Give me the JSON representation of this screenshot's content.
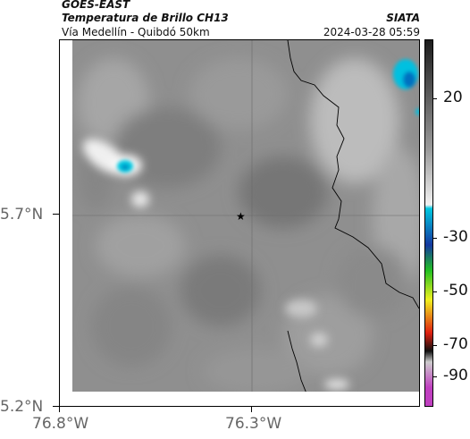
{
  "header": {
    "satellite": "GOES-EAST",
    "product": "Temperatura de Brillo CH13",
    "region": "Vía Medellín - Quibdó 50km",
    "agency": "SIATA",
    "timestamp": "2024-03-28 05:59"
  },
  "axes": {
    "y_ticks": [
      {
        "label": "5.7°N",
        "value": 5.7
      },
      {
        "label": "5.2°N",
        "value": 5.2
      }
    ],
    "x_ticks": [
      {
        "label": "76.8°W",
        "value": -76.8
      },
      {
        "label": "76.3°W",
        "value": -76.3
      }
    ]
  },
  "colorbar": {
    "ticks": [
      {
        "label": "20",
        "value": 20
      },
      {
        "label": "-30",
        "value": -30
      },
      {
        "label": "-50",
        "value": -50
      },
      {
        "label": "-70",
        "value": -70
      },
      {
        "label": "-90",
        "value": -90
      }
    ],
    "colors": {
      "warm_top": "#1c1c1c",
      "warm_mid": "#9a9a9a",
      "warm_low": "#f2f2f2",
      "cyan": "#00c8e0",
      "blue": "#1438a0",
      "green": "#22c022",
      "yellow": "#f0f020",
      "red": "#e02010",
      "black": "#101010",
      "magenta": "#c040c0"
    }
  },
  "map": {
    "marker_icon": "star-icon",
    "cold_clouds": "#00bfe0",
    "background_gray": "#8c8c8c"
  }
}
